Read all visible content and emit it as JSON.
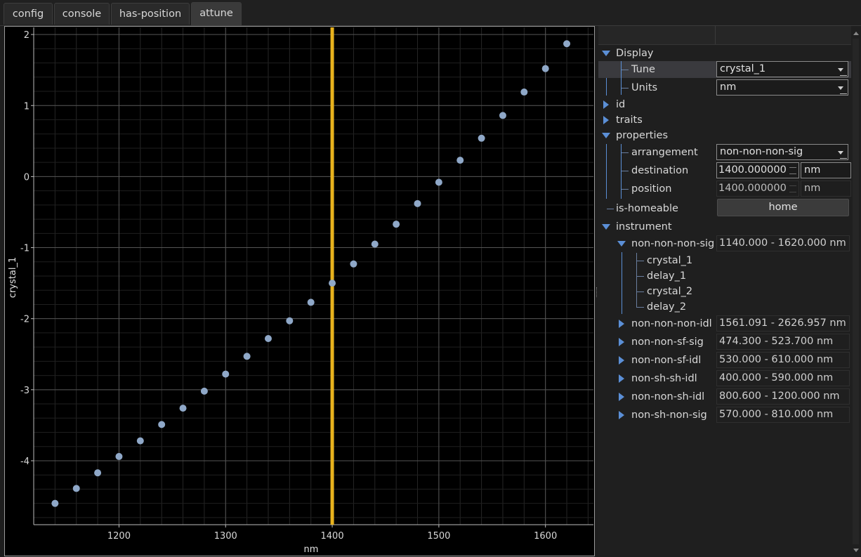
{
  "tabs": [
    "config",
    "console",
    "has-position",
    "attune"
  ],
  "active_tab": "attune",
  "chart_data": {
    "type": "scatter",
    "xlabel": "nm",
    "ylabel": "crystal_1",
    "xlim": [
      1120,
      1645
    ],
    "ylim": [
      -4.9,
      2.1
    ],
    "xticks": [
      1200,
      1300,
      1400,
      1500,
      1600
    ],
    "yticks": [
      2,
      1,
      0,
      -1,
      -2,
      -3,
      -4
    ],
    "grid": true,
    "x": [
      1140,
      1160,
      1180,
      1200,
      1220,
      1240,
      1260,
      1280,
      1300,
      1320,
      1340,
      1360,
      1380,
      1400,
      1420,
      1440,
      1460,
      1480,
      1500,
      1520,
      1540,
      1560,
      1580,
      1600,
      1620
    ],
    "y": [
      -4.6,
      -4.39,
      -4.17,
      -3.94,
      -3.72,
      -3.49,
      -3.26,
      -3.02,
      -2.78,
      -2.53,
      -2.28,
      -2.03,
      -1.77,
      -1.5,
      -1.23,
      -0.95,
      -0.67,
      -0.38,
      -0.08,
      0.23,
      0.54,
      0.86,
      1.19,
      1.52,
      1.87
    ],
    "marker_color": "#8fa8c8",
    "vline": {
      "x": 1400,
      "color": "#e8b21d"
    }
  },
  "tree": {
    "display": {
      "label": "Display",
      "tune": {
        "label": "Tune",
        "value": "crystal_1"
      },
      "units": {
        "label": "Units",
        "value": "nm"
      }
    },
    "id_label": "id",
    "traits_label": "traits",
    "properties": {
      "label": "properties",
      "arrangement": {
        "label": "arrangement",
        "value": "non-non-non-sig"
      },
      "destination": {
        "label": "destination",
        "value": "1400.000000",
        "unit": "nm"
      },
      "position": {
        "label": "position",
        "value": "1400.000000",
        "unit": "nm"
      }
    },
    "is_homeable": {
      "label": "is-homeable",
      "button": "home"
    },
    "instrument": {
      "label": "instrument",
      "arrangements": [
        {
          "name": "non-non-non-sig",
          "range": "1140.000 - 1620.000 nm",
          "expanded": true,
          "children": [
            "crystal_1",
            "delay_1",
            "crystal_2",
            "delay_2"
          ]
        },
        {
          "name": "non-non-non-idl",
          "range": "1561.091 - 2626.957 nm"
        },
        {
          "name": "non-non-sf-sig",
          "range": "474.300 - 523.700 nm"
        },
        {
          "name": "non-non-sf-idl",
          "range": "530.000 - 610.000 nm"
        },
        {
          "name": "non-sh-sh-idl",
          "range": "400.000 - 590.000 nm"
        },
        {
          "name": "non-non-sh-idl",
          "range": "800.600 - 1200.000 nm"
        },
        {
          "name": "non-sh-non-sig",
          "range": "570.000 - 810.000 nm"
        }
      ]
    }
  },
  "colors": {
    "accent": "#5b8fd6",
    "vline": "#e8b21d",
    "marker": "#8fa8c8"
  }
}
